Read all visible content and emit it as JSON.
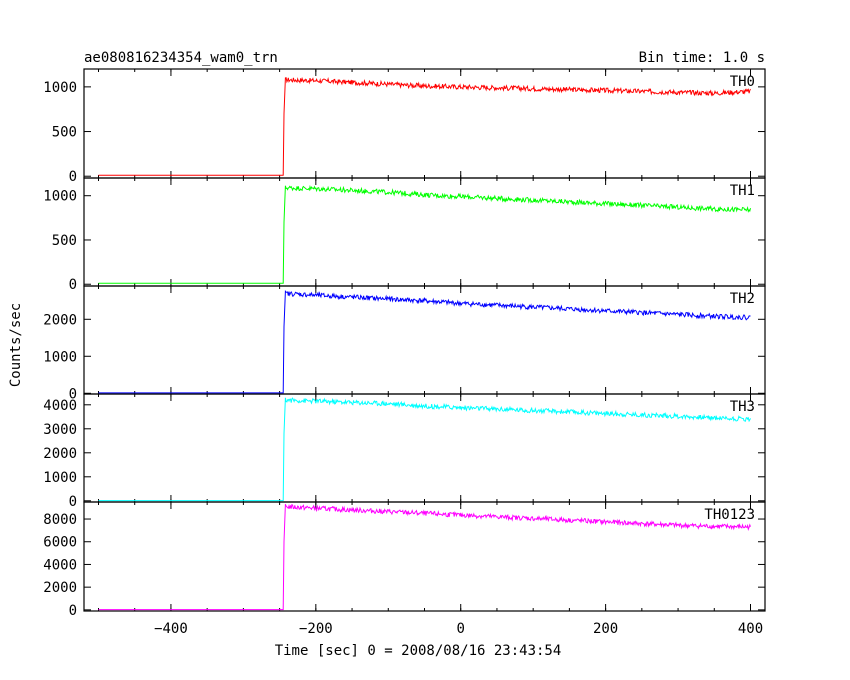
{
  "chart_data": {
    "type": "line",
    "title": "ae080816234354_wam0_trn",
    "bin_time_label": "Bin time: 1.0 s",
    "xlabel": "Time [sec] 0 = 2008/08/16 23:43:54",
    "ylabel": "Counts/sec",
    "xlim": [
      -520,
      420
    ],
    "x_ticks": [
      -400,
      -200,
      0,
      200,
      400
    ],
    "x_tick_labels": [
      "−400",
      "−200",
      "0",
      "200",
      "400"
    ],
    "grid": false,
    "panels": [
      {
        "name": "TH0",
        "color": "#ff0000",
        "ylim": [
          -20,
          1200
        ],
        "y_ticks": [
          0,
          500,
          1000
        ],
        "x": [
          -500,
          -245,
          -244,
          -242,
          -200,
          -150,
          -100,
          -50,
          0,
          50,
          100,
          150,
          200,
          250,
          300,
          350,
          400
        ],
        "y": [
          10,
          10,
          700,
          1080,
          1070,
          1050,
          1030,
          1010,
          1000,
          990,
          980,
          970,
          960,
          950,
          940,
          930,
          950
        ]
      },
      {
        "name": "TH1",
        "color": "#00ff00",
        "ylim": [
          -20,
          1200
        ],
        "y_ticks": [
          0,
          500,
          1000
        ],
        "x": [
          -500,
          -245,
          -244,
          -242,
          -200,
          -150,
          -100,
          -50,
          0,
          50,
          100,
          150,
          200,
          250,
          300,
          350,
          400
        ],
        "y": [
          10,
          10,
          700,
          1090,
          1080,
          1060,
          1040,
          1010,
          990,
          970,
          950,
          930,
          910,
          890,
          870,
          850,
          840
        ]
      },
      {
        "name": "TH2",
        "color": "#0000ff",
        "ylim": [
          -20,
          2900
        ],
        "y_ticks": [
          0,
          1000,
          2000
        ],
        "x": [
          -500,
          -245,
          -244,
          -242,
          -200,
          -150,
          -100,
          -50,
          0,
          50,
          100,
          150,
          200,
          250,
          300,
          350,
          400
        ],
        "y": [
          10,
          10,
          1800,
          2700,
          2650,
          2600,
          2550,
          2500,
          2430,
          2380,
          2330,
          2280,
          2230,
          2180,
          2130,
          2080,
          2050
        ]
      },
      {
        "name": "TH3",
        "color": "#00ffff",
        "ylim": [
          -50,
          4450
        ],
        "y_ticks": [
          0,
          1000,
          2000,
          3000,
          4000
        ],
        "x": [
          -500,
          -245,
          -244,
          -242,
          -200,
          -150,
          -100,
          -50,
          0,
          50,
          100,
          150,
          200,
          250,
          300,
          350,
          400
        ],
        "y": [
          10,
          10,
          2800,
          4200,
          4150,
          4100,
          4050,
          3950,
          3880,
          3820,
          3760,
          3700,
          3640,
          3580,
          3520,
          3460,
          3400
        ]
      },
      {
        "name": "TH0123",
        "color": "#ff00ff",
        "ylim": [
          -100,
          9500
        ],
        "y_ticks": [
          0,
          2000,
          4000,
          6000,
          8000
        ],
        "x": [
          -500,
          -245,
          -244,
          -242,
          -200,
          -150,
          -100,
          -50,
          0,
          50,
          100,
          150,
          200,
          250,
          300,
          350,
          400
        ],
        "y": [
          20,
          20,
          6000,
          9100,
          8950,
          8800,
          8650,
          8500,
          8350,
          8200,
          8050,
          7900,
          7750,
          7600,
          7450,
          7350,
          7300
        ]
      }
    ]
  }
}
